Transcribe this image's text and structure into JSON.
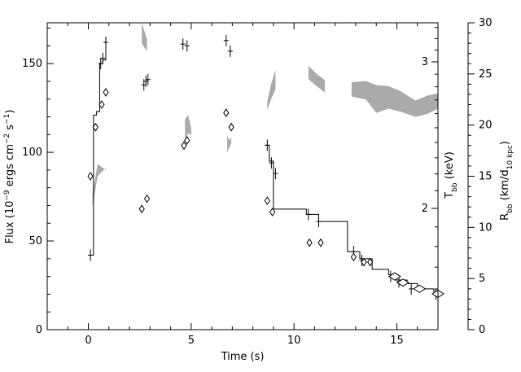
{
  "chart_data": {
    "type": "scatter",
    "xlabel": "Time (s)",
    "ylabel_left": {
      "text": "Flux (10",
      "sup1": "−9",
      "text2": " ergs cm",
      "sup2": "−2",
      "text3": " s",
      "sup3": "−1",
      "text4": ")"
    },
    "ylabel_mid": {
      "text": "T",
      "sub": "bb",
      "text2": " (keV)"
    },
    "ylabel_right": {
      "text": "R",
      "sub": "bb",
      "text2": " (km/d",
      "sub2": "10 kpc",
      "text3": ")"
    },
    "xlim": [
      -2.0,
      17.0
    ],
    "ylim_flux": [
      0,
      173
    ],
    "ylim_temp_ticks": [
      2,
      3
    ],
    "ylim_radius": [
      0,
      30
    ],
    "x_ticks": [
      0,
      5,
      10,
      15
    ],
    "x_tick_labels": [
      "0",
      "5",
      "10",
      "15"
    ],
    "flux_ticks": [
      0,
      50,
      100,
      150
    ],
    "flux_tick_labels": [
      "0",
      "50",
      "100",
      "150"
    ],
    "temp_ticks": [
      2,
      3
    ],
    "temp_tick_labels": [
      "2",
      "3"
    ],
    "radius_ticks": [
      0,
      5,
      10,
      15,
      20,
      25,
      30
    ],
    "radius_tick_labels": [
      "0",
      "5",
      "10",
      "15",
      "20",
      "25",
      "30"
    ],
    "flux_step": {
      "name": "Flux",
      "x": [
        0.1,
        0.25,
        0.4,
        0.55,
        0.7,
        0.85,
        17.0
      ],
      "y": [
        42,
        121,
        123,
        150,
        152,
        162,
        20
      ],
      "steps": [
        [
          0.1,
          42
        ],
        [
          0.25,
          121
        ],
        [
          0.4,
          123
        ],
        [
          0.55,
          150
        ],
        [
          0.7,
          152
        ],
        [
          0.85,
          162
        ]
      ]
    },
    "flux_decay": [
      [
        8.6,
        104
      ],
      [
        8.8,
        95
      ],
      [
        9.0,
        90
      ],
      [
        9.0,
        68
      ],
      [
        10.6,
        65
      ],
      [
        11.2,
        61
      ],
      [
        12.6,
        44
      ],
      [
        13.2,
        40
      ],
      [
        13.8,
        34
      ],
      [
        14.6,
        31
      ],
      [
        14.9,
        28
      ],
      [
        15.5,
        26
      ],
      [
        16.0,
        23
      ],
      [
        16.8,
        21
      ],
      [
        17.0,
        20
      ]
    ],
    "flux_points": [
      {
        "x": 0.1,
        "y": 42
      },
      {
        "x": 0.6,
        "y": 150
      },
      {
        "x": 0.7,
        "y": 153
      },
      {
        "x": 0.85,
        "y": 162
      },
      {
        "x": 2.7,
        "y": 138
      },
      {
        "x": 2.8,
        "y": 140
      },
      {
        "x": 2.9,
        "y": 141
      },
      {
        "x": 4.6,
        "y": 161
      },
      {
        "x": 4.8,
        "y": 160
      },
      {
        "x": 6.7,
        "y": 163
      },
      {
        "x": 6.9,
        "y": 157
      },
      {
        "x": 8.7,
        "y": 104
      },
      {
        "x": 8.9,
        "y": 94
      },
      {
        "x": 9.1,
        "y": 88
      },
      {
        "x": 10.7,
        "y": 65
      },
      {
        "x": 11.2,
        "y": 61
      },
      {
        "x": 12.9,
        "y": 44
      },
      {
        "x": 13.3,
        "y": 39
      },
      {
        "x": 14.7,
        "y": 30
      },
      {
        "x": 15.1,
        "y": 27
      },
      {
        "x": 15.7,
        "y": 23
      },
      {
        "x": 16.9,
        "y": 20
      }
    ],
    "temperature_diamonds_radius": [
      {
        "x": 0.1,
        "r": 15.0
      },
      {
        "x": 0.35,
        "r": 19.8
      },
      {
        "x": 0.65,
        "r": 22.0
      },
      {
        "x": 0.85,
        "r": 23.2
      },
      {
        "x": 2.6,
        "r": 11.8
      },
      {
        "x": 2.85,
        "r": 12.8
      },
      {
        "x": 4.65,
        "r": 18.0
      },
      {
        "x": 4.8,
        "r": 18.5
      },
      {
        "x": 6.7,
        "r": 21.2
      },
      {
        "x": 6.95,
        "r": 19.8
      },
      {
        "x": 8.7,
        "r": 12.6
      },
      {
        "x": 8.95,
        "r": 11.5
      },
      {
        "x": 10.75,
        "r": 8.5
      },
      {
        "x": 11.3,
        "r": 8.5
      },
      {
        "x": 12.9,
        "r": 7.1
      },
      {
        "x": 13.4,
        "r": 6.6
      },
      {
        "x": 13.7,
        "r": 6.6
      },
      {
        "x": 14.9,
        "r": 5.2
      },
      {
        "x": 15.3,
        "r": 4.6
      },
      {
        "x": 16.1,
        "r": 4.0
      },
      {
        "x": 17.0,
        "r": 3.5
      }
    ],
    "radius_bands": [
      {
        "x": [
          0.2,
          0.45,
          0.85
        ],
        "r_low": [
          12.0,
          15.0,
          15.8
        ],
        "r_high": [
          13.2,
          16.2,
          15.6
        ]
      },
      {
        "x": [
          2.6,
          2.72,
          2.85
        ],
        "r_low": [
          28.0,
          27.6,
          27.2
        ],
        "r_high": [
          30.0,
          29.2,
          28.4
        ]
      },
      {
        "x": [
          4.7,
          4.85,
          5.0
        ],
        "r_low": [
          18.5,
          19.2,
          19.0
        ],
        "r_high": [
          20.5,
          21.0,
          19.7
        ]
      },
      {
        "x": [
          6.75,
          6.85,
          6.95
        ],
        "r_low": [
          17.3,
          17.8,
          18.2
        ],
        "r_high": [
          19.0,
          18.5,
          18.8
        ]
      },
      {
        "x": [
          8.7,
          8.9,
          9.1
        ],
        "r_low": [
          21.5,
          22.6,
          23.5
        ],
        "r_high": [
          22.3,
          24.1,
          25.4
        ]
      },
      {
        "x": [
          10.7,
          11.1,
          11.5
        ],
        "r_low": [
          24.5,
          23.8,
          23.2
        ],
        "r_high": [
          25.8,
          25.0,
          24.4
        ]
      },
      {
        "x": [
          12.8,
          13.5,
          14.0,
          14.6,
          15.2,
          15.9,
          16.5,
          17.0
        ],
        "r_low": [
          22.8,
          22.5,
          21.2,
          21.6,
          21.3,
          20.8,
          21.1,
          21.6
        ],
        "r_high": [
          24.2,
          24.3,
          23.9,
          23.8,
          23.3,
          22.4,
          22.9,
          23.1
        ]
      }
    ]
  }
}
